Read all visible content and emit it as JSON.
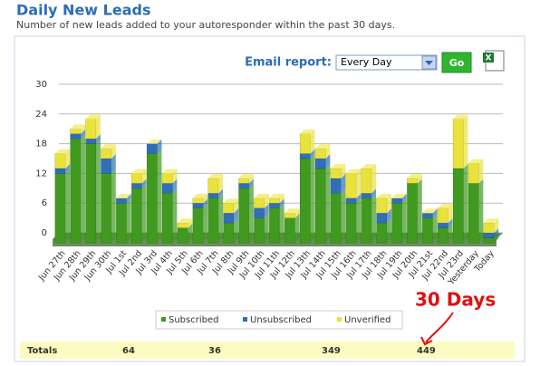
{
  "header": {
    "title": "Daily New Leads",
    "subtitle": "Number of new leads added to your autoresponder within the past 30 days."
  },
  "email_report": {
    "label": "Email report:",
    "option": "Every Day",
    "button": "Go"
  },
  "chart_data": {
    "type": "stacked_bar",
    "categories": [
      "Jun 27th",
      "Jun 28th",
      "Jun 29th",
      "Jun 30th",
      "Jul 1st",
      "Jul 2nd",
      "Jul 3rd",
      "Jul 4th",
      "Jul 5th",
      "Jul 6th",
      "Jul 7th",
      "Jul 8th",
      "Jul 9th",
      "Jul 10th",
      "Jul 11th",
      "Jul 12th",
      "Jul 13th",
      "Jul 14th",
      "Jul 15th",
      "Jul 16th",
      "Jul 17th",
      "Jul 18th",
      "Jul 19th",
      "Jul 20th",
      "Jul 21st",
      "Jul 22nd",
      "Jul 23rd",
      "Yesterday",
      "Today"
    ],
    "series": [
      {
        "name": "Subscribed",
        "color": "#3f9a1f",
        "values": [
          14,
          21,
          20,
          14,
          8,
          11,
          18,
          10,
          3,
          7,
          9,
          4,
          11,
          5,
          7,
          5,
          17,
          15,
          10,
          8,
          9,
          4,
          8,
          12,
          5,
          3,
          15,
          12,
          1
        ]
      },
      {
        "name": "Unsubscribed",
        "color": "#2f6fb8",
        "values": [
          1,
          1,
          1,
          3,
          1,
          1,
          2,
          2,
          0,
          1,
          1,
          2,
          1,
          2,
          1,
          0,
          1,
          2,
          3,
          1,
          1,
          2,
          1,
          0,
          1,
          1,
          0,
          0,
          1
        ]
      },
      {
        "name": "Unverified",
        "color": "#e8e23a",
        "values": [
          3,
          1,
          4,
          2,
          0,
          2,
          0,
          2,
          1,
          1,
          3,
          2,
          1,
          2,
          1,
          1,
          4,
          2,
          2,
          5,
          5,
          3,
          0,
          1,
          0,
          3,
          10,
          4,
          2
        ]
      }
    ],
    "ylim": [
      0,
      30
    ],
    "yticks": [
      0,
      6,
      12,
      18,
      24,
      30
    ],
    "grid": true,
    "legend": "bottom",
    "annotation": "30 Days"
  },
  "totals": {
    "label": "Totals",
    "values": [
      64,
      36,
      349,
      449
    ]
  }
}
